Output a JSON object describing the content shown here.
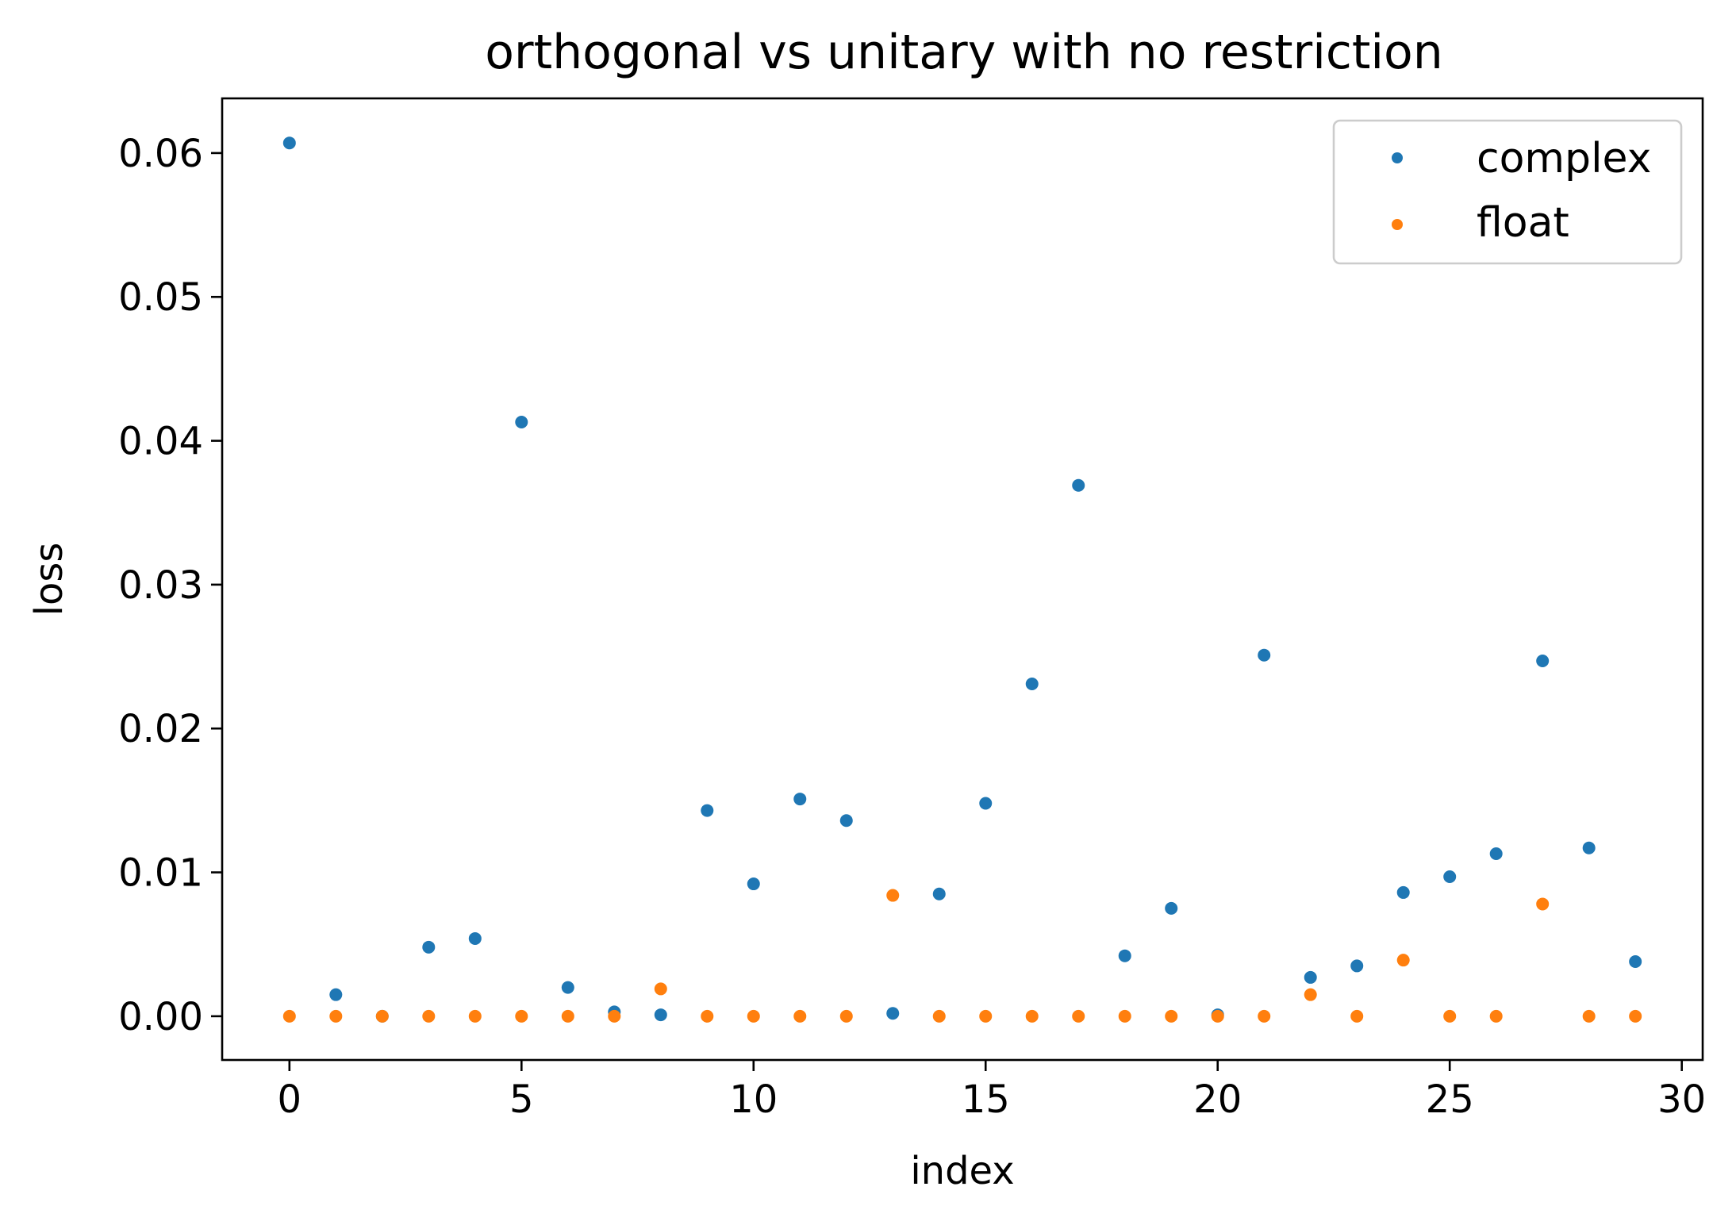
{
  "chart_data": {
    "type": "scatter",
    "title": "orthogonal vs unitary with no restriction",
    "xlabel": "index",
    "ylabel": "loss",
    "xlim": [
      -1.45,
      30.45
    ],
    "ylim": [
      -0.00304,
      0.0638
    ],
    "xticks": [
      0,
      5,
      10,
      15,
      20,
      25,
      30
    ],
    "xtick_labels": [
      "0",
      "5",
      "10",
      "15",
      "20",
      "25",
      "30"
    ],
    "yticks": [
      0.0,
      0.01,
      0.02,
      0.03,
      0.04,
      0.05,
      0.06
    ],
    "ytick_labels": [
      "0.00",
      "0.01",
      "0.02",
      "0.03",
      "0.04",
      "0.05",
      "0.06"
    ],
    "grid": false,
    "legend_position": "top-right",
    "series": [
      {
        "name": "complex",
        "color": "#1f77b4",
        "x": [
          0,
          1,
          2,
          3,
          4,
          5,
          6,
          7,
          8,
          9,
          10,
          11,
          12,
          13,
          14,
          15,
          16,
          17,
          18,
          19,
          20,
          21,
          22,
          23,
          24,
          25,
          26,
          27,
          28,
          29
        ],
        "y": [
          0.0607,
          0.0015,
          0.0,
          0.0048,
          0.0054,
          0.0413,
          0.002,
          0.0003,
          0.0001,
          0.0143,
          0.0092,
          0.0151,
          0.0136,
          0.0002,
          0.0085,
          0.0148,
          0.0231,
          0.0369,
          0.0042,
          0.0075,
          0.0001,
          0.0251,
          0.0027,
          0.0035,
          0.0086,
          0.0097,
          0.0113,
          0.0247,
          0.0117,
          0.0038
        ]
      },
      {
        "name": "float",
        "color": "#ff7f0e",
        "x": [
          0,
          1,
          2,
          3,
          4,
          5,
          6,
          7,
          8,
          9,
          10,
          11,
          12,
          13,
          14,
          15,
          16,
          17,
          18,
          19,
          20,
          21,
          22,
          23,
          24,
          25,
          26,
          27,
          28,
          29
        ],
        "y": [
          0.0,
          0.0,
          0.0,
          0.0,
          0.0,
          0.0,
          0.0,
          0.0,
          0.0019,
          0.0,
          0.0,
          0.0,
          0.0,
          0.0084,
          0.0,
          0.0,
          0.0,
          0.0,
          0.0,
          0.0,
          0.0,
          0.0,
          0.0015,
          0.0,
          0.0039,
          0.0,
          0.0,
          0.0078,
          0.0,
          0.0
        ]
      }
    ]
  }
}
